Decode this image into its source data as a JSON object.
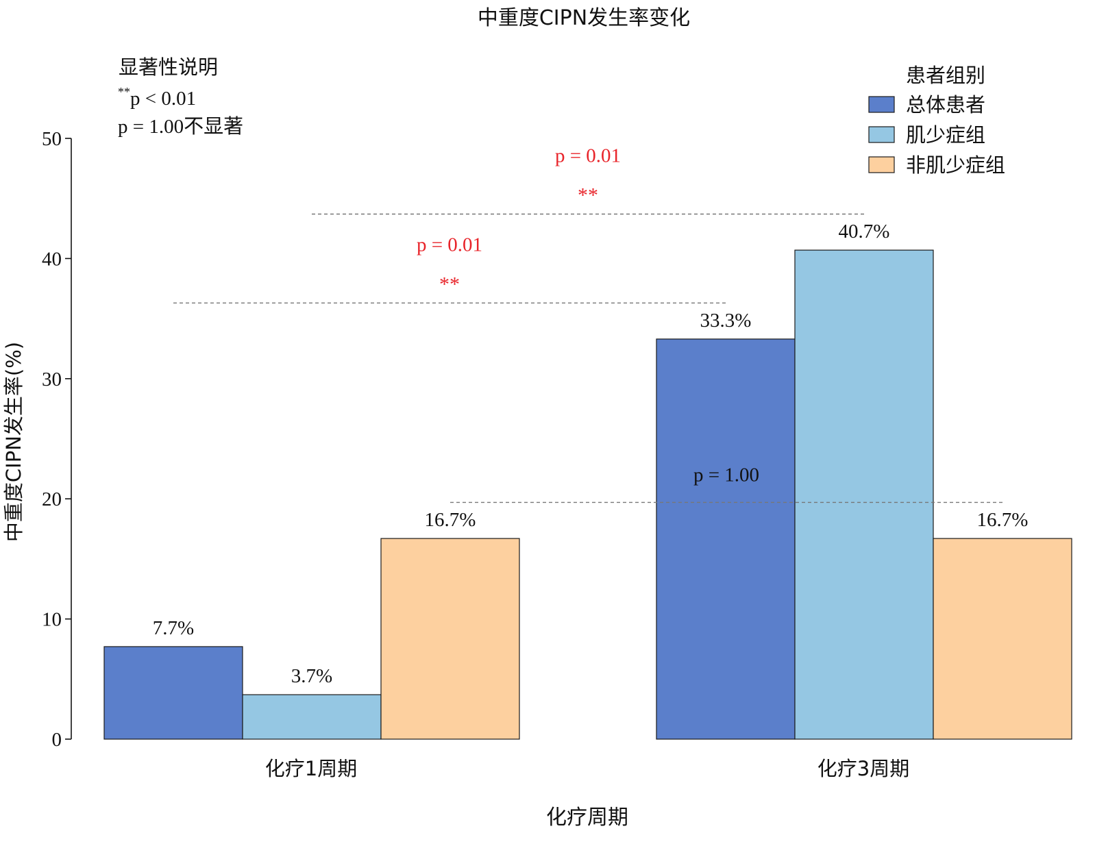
{
  "chart_data": {
    "type": "bar",
    "title": "中重度CIPN发生率变化",
    "xlabel": "化疗周期",
    "ylabel": "中重度CIPN发生率(%)",
    "ylim": [
      0,
      50
    ],
    "yticks": [
      "0",
      "10",
      "20",
      "30",
      "40",
      "50"
    ],
    "categories": [
      "化疗1周期",
      "化疗3周期"
    ],
    "series": [
      {
        "name": "总体患者",
        "values": [
          7.7,
          33.3
        ],
        "labels": [
          "7.7%",
          "33.3%"
        ],
        "color": "#5b7fcb"
      },
      {
        "name": "肌少症组",
        "values": [
          3.7,
          40.7
        ],
        "labels": [
          "3.7%",
          "40.7%"
        ],
        "color": "#95c7e3"
      },
      {
        "name": "非肌少症组",
        "values": [
          16.7,
          16.7
        ],
        "labels": [
          "16.7%",
          "16.7%"
        ],
        "color": "#fdd09f"
      }
    ],
    "legend": {
      "title": "患者组别",
      "position": "top-right"
    },
    "significance_note": {
      "title": "显著性说明",
      "line1_stars": "**",
      "line1_text": "p < 0.01",
      "line2": "p = 1.00不显著"
    },
    "comparisons": [
      {
        "between": [
          "化疗1周期 总体患者",
          "化疗3周期 总体患者"
        ],
        "y": 36.3,
        "text": "p = 0.01",
        "stars": "**",
        "color": "#e8242a"
      },
      {
        "between": [
          "化疗1周期 肌少症组",
          "化疗3周期 肌少症组"
        ],
        "y": 43.7,
        "text": "p = 0.01",
        "stars": "**",
        "color": "#e8242a"
      },
      {
        "between": [
          "化疗1周期 非肌少症组",
          "化疗3周期 非肌少症组"
        ],
        "y": 19.7,
        "text": "p = 1.00",
        "stars": "",
        "color": "#111111"
      }
    ],
    "grid": false
  }
}
